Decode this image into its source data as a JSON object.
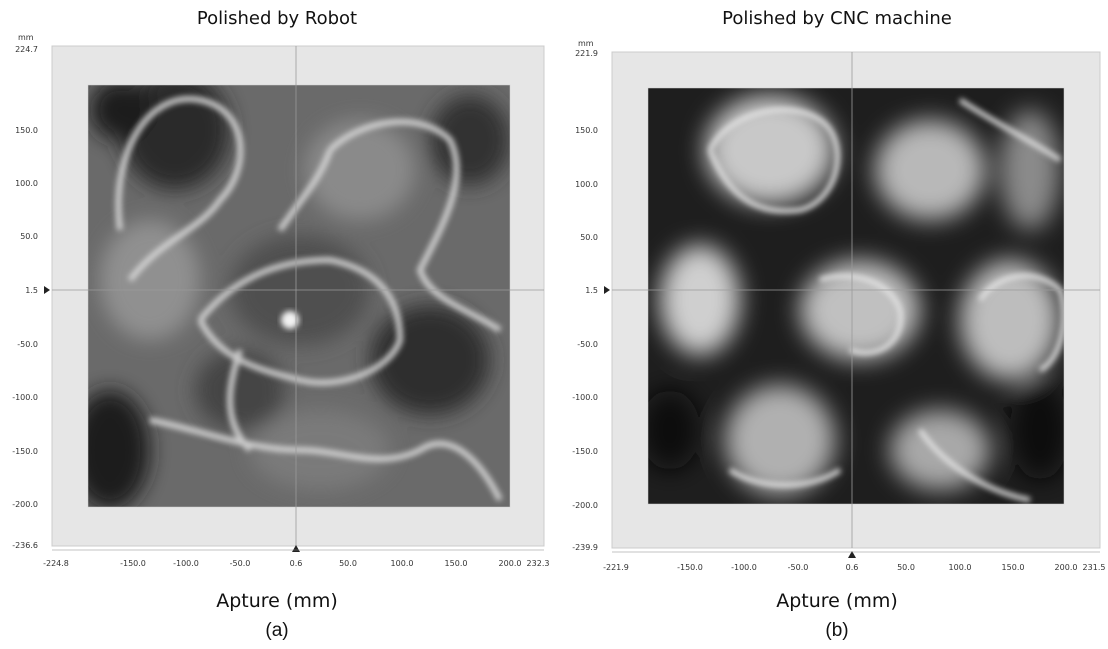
{
  "figure": {
    "panels": [
      {
        "id": "a",
        "title": "Polished by Robot",
        "y_unit": "mm",
        "xlabel": "Apture (mm)",
        "sublabel": "(a)",
        "y_ticks": [
          "224.7",
          "150.0",
          "100.0",
          "50.0",
          "1.5",
          "-50.0",
          "-100.0",
          "-150.0",
          "-200.0",
          "-236.6"
        ],
        "x_ticks": [
          "-224.8",
          "-150.0",
          "-100.0",
          "-50.0",
          "0.6",
          "50.0",
          "100.0",
          "150.0",
          "200.0",
          "232.3"
        ],
        "map_style": "robot-surface-error-map-grayscale"
      },
      {
        "id": "b",
        "title": "Polished by CNC machine",
        "y_unit": "mm",
        "xlabel": "Apture (mm)",
        "sublabel": "(b)",
        "y_ticks": [
          "221.9",
          "150.0",
          "100.0",
          "50.0",
          "1.5",
          "-50.0",
          "-100.0",
          "-150.0",
          "-200.0",
          "-239.9"
        ],
        "x_ticks": [
          "-221.9",
          "-150.0",
          "-100.0",
          "-50.0",
          "0.6",
          "50.0",
          "100.0",
          "150.0",
          "200.0",
          "231.5"
        ],
        "map_style": "cnc-surface-error-map-grayscale"
      }
    ]
  }
}
